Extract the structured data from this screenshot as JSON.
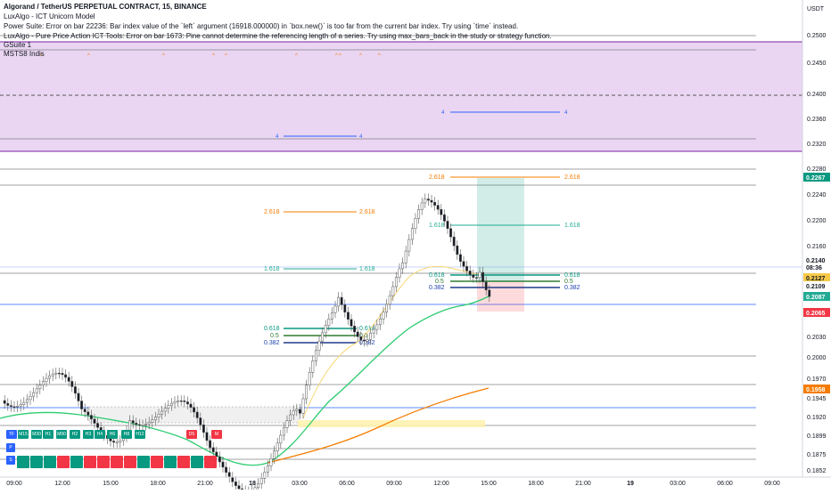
{
  "header": {
    "symbol_line": "Algorand / TetherUS PERPETUAL CONTRACT, 15, BINANCE",
    "indicators": [
      "LuxAlgo - ICT Unicorn Model",
      "Power Suite: Error on bar 22236: Bar index value of the `left` argument (16918.000000) in `box.new()` is too far from the current bar index. Try using `time` instead.",
      "LuxAlgo - Pure Price Action ICT Tools: Error on bar 1673: Pine cannot determine the referencing length of a series. Try using max_bars_back in the study or strategy function."
    ]
  },
  "pane_labels": {
    "gsuite": "GSuite 1",
    "msts": "MSTS8 Indis"
  },
  "currency": "USDT",
  "price_scale": {
    "ticks": [
      "0.2500",
      "0.2450",
      "0.2400",
      "0.2360",
      "0.2320",
      "0.2280",
      "0.2240",
      "0.2200",
      "0.2160",
      "0.2030",
      "0.2000",
      "0.1970",
      "0.1945",
      "0.1920",
      "0.1899",
      "0.1875",
      "0.1852"
    ],
    "price_labels": [
      {
        "text": "0.2267",
        "bg": "#089981",
        "fg": "#ffffff"
      },
      {
        "text": "0.2140",
        "bg": "#ffffff",
        "fg": "#131722"
      },
      {
        "text": "08:36",
        "bg": "#ffffff",
        "fg": "#131722"
      },
      {
        "text": "0.2127",
        "bg": "#f7c948",
        "fg": "#131722"
      },
      {
        "text": "0.2109",
        "bg": "#ffffff",
        "fg": "#131722"
      },
      {
        "text": "0.2087",
        "bg": "#22ab94",
        "fg": "#ffffff"
      },
      {
        "text": "0.2065",
        "bg": "#f23645",
        "fg": "#ffffff"
      },
      {
        "text": "0.1958",
        "bg": "#f57c00",
        "fg": "#ffffff"
      }
    ]
  },
  "time_axis": [
    "09:00",
    "12:00",
    "15:00",
    "18:00",
    "21:00",
    "18",
    "03:00",
    "06:00",
    "09:00",
    "12:00",
    "15:00",
    "18:00",
    "21:00",
    "19",
    "03:00",
    "06:00",
    "09:00"
  ],
  "fib_labels": {
    "left_2618": "2.618",
    "left_1618": "1.618",
    "left_0618": "0.618",
    "left_05": "0.5",
    "left_0382": "0.382",
    "right_2618": "2.618",
    "right_1618": "1.618",
    "right_0618": "0.618",
    "right_05": "0.5",
    "right_0382": "0.382"
  },
  "pane_level_labels": {
    "a": "4",
    "b": "4"
  },
  "timeframe_badges": [
    "TF",
    "M15",
    "M30",
    "H1",
    "M90",
    "H2",
    "H3",
    "H4",
    "H6",
    "H8",
    "H12",
    "D5",
    "M"
  ],
  "row_labels": [
    "P",
    "S"
  ],
  "colors": {
    "up": "#089981",
    "down": "#f23645",
    "candle": "#787b86",
    "pane_bg": "#ead6f2",
    "green_ma": "#2ecc71",
    "orange_ma": "#f57c00",
    "yellow_ma": "#f7d774"
  }
}
